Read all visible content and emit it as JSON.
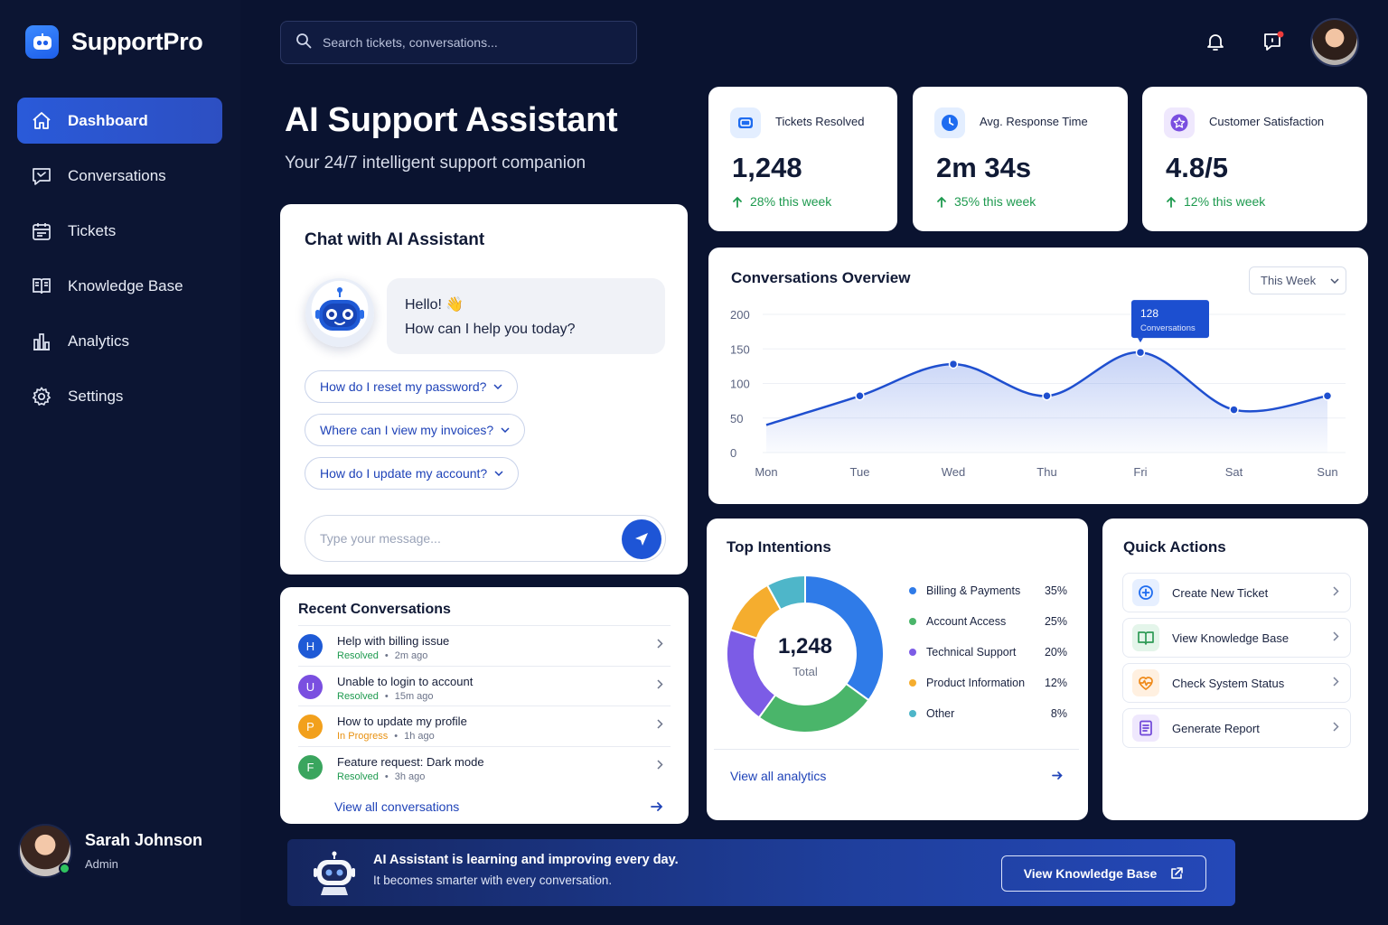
{
  "brand": {
    "name": "SupportPro"
  },
  "sidebar": {
    "items": [
      {
        "label": "Dashboard",
        "icon": "home-icon",
        "active": true
      },
      {
        "label": "Conversations",
        "icon": "chat-icon"
      },
      {
        "label": "Tickets",
        "icon": "calendar-icon"
      },
      {
        "label": "Knowledge Base",
        "icon": "book-icon"
      },
      {
        "label": "Analytics",
        "icon": "bar-chart-icon"
      },
      {
        "label": "Settings",
        "icon": "gear-icon"
      }
    ],
    "user": {
      "name": "Sarah Johnson",
      "role": "Admin",
      "status_color": "#2fc35f"
    }
  },
  "topbar": {
    "search_placeholder": "Search tickets, conversations..."
  },
  "hero": {
    "title": "AI Support Assistant",
    "subtitle": "Your 24/7 intelligent support companion"
  },
  "stats": [
    {
      "label": "Tickets Resolved",
      "value": "1,248",
      "change": "28% this week",
      "icon": "ticket-icon",
      "color": "#1e6cf0"
    },
    {
      "label": "Avg. Response Time",
      "value": "2m 34s",
      "change": "35% this week",
      "icon": "clock-icon",
      "color": "#1e6cf0"
    },
    {
      "label": "Customer Satisfaction",
      "value": "4.8/5",
      "change": "12% this week",
      "icon": "star-icon",
      "color": "#7a4fe0"
    }
  ],
  "chat": {
    "title": "Chat with AI Assistant",
    "greeting": "Hello! 👋",
    "message": "How can I help you today?",
    "suggestions": [
      "How do I reset my password?",
      "Where can I view my invoices?",
      "How do I update my account?"
    ],
    "input_placeholder": "Type your message..."
  },
  "recent": {
    "title": "Recent Conversations",
    "items": [
      {
        "initial": "H",
        "title": "Help with billing issue",
        "status": "Resolved",
        "time": "2m ago",
        "color": "#1e5ad6",
        "status_color": "#1e9a4f"
      },
      {
        "initial": "U",
        "title": "Unable to login to account",
        "status": "Resolved",
        "time": "15m ago",
        "color": "#7a4fe0",
        "status_color": "#1e9a4f"
      },
      {
        "initial": "P",
        "title": "How to update my profile",
        "status": "In Progress",
        "time": "1h ago",
        "color": "#f2a01c",
        "status_color": "#e8900f"
      },
      {
        "initial": "F",
        "title": "Feature request: Dark mode",
        "status": "Resolved",
        "time": "3h ago",
        "color": "#3aa55e",
        "status_color": "#1e9a4f"
      }
    ],
    "link": "View all conversations"
  },
  "overview": {
    "title": "Conversations Overview",
    "filter": "This Week",
    "tooltip_value": "128",
    "tooltip_label": "Conversations"
  },
  "chart_data": {
    "type": "area",
    "title": "Conversations Overview",
    "categories": [
      "Mon",
      "Tue",
      "Wed",
      "Thu",
      "Fri",
      "Sat",
      "Sun"
    ],
    "series": [
      {
        "name": "Conversations",
        "values": [
          40,
          82,
          128,
          82,
          145,
          62,
          82
        ]
      }
    ],
    "yticks": [
      0,
      50,
      100,
      150,
      200
    ],
    "ylim": [
      0,
      200
    ],
    "grid": true,
    "color": "#1f4fcf"
  },
  "intentions": {
    "title": "Top Intentions",
    "total": "1,248",
    "total_label": "Total",
    "items": [
      {
        "label": "Billing & Payments",
        "pct": "35%",
        "value": 35,
        "color": "#2f7be8"
      },
      {
        "label": "Account Access",
        "pct": "25%",
        "value": 25,
        "color": "#4ab56a"
      },
      {
        "label": "Technical Support",
        "pct": "20%",
        "value": 20,
        "color": "#7c5ce6"
      },
      {
        "label": "Product Information",
        "pct": "12%",
        "value": 12,
        "color": "#f5ad2e"
      },
      {
        "label": "Other",
        "pct": "8%",
        "value": 8,
        "color": "#4eb6c9"
      }
    ],
    "link": "View all analytics"
  },
  "quick_actions": {
    "title": "Quick Actions",
    "items": [
      {
        "label": "Create New Ticket",
        "icon": "plus-circle-icon",
        "color": "#1e6cf0",
        "bg": "#e6efff"
      },
      {
        "label": "View Knowledge Base",
        "icon": "open-book-icon",
        "color": "#2e9a55",
        "bg": "#e4f5ea"
      },
      {
        "label": "Check System Status",
        "icon": "pulse-icon",
        "color": "#ef8a1a",
        "bg": "#fff0e0"
      },
      {
        "label": "Generate Report",
        "icon": "report-icon",
        "color": "#6f46d8",
        "bg": "#efe8fd"
      }
    ]
  },
  "banner": {
    "line1": "AI Assistant is learning and improving every day.",
    "line2": "It becomes smarter with every conversation.",
    "button": "View Knowledge Base"
  }
}
